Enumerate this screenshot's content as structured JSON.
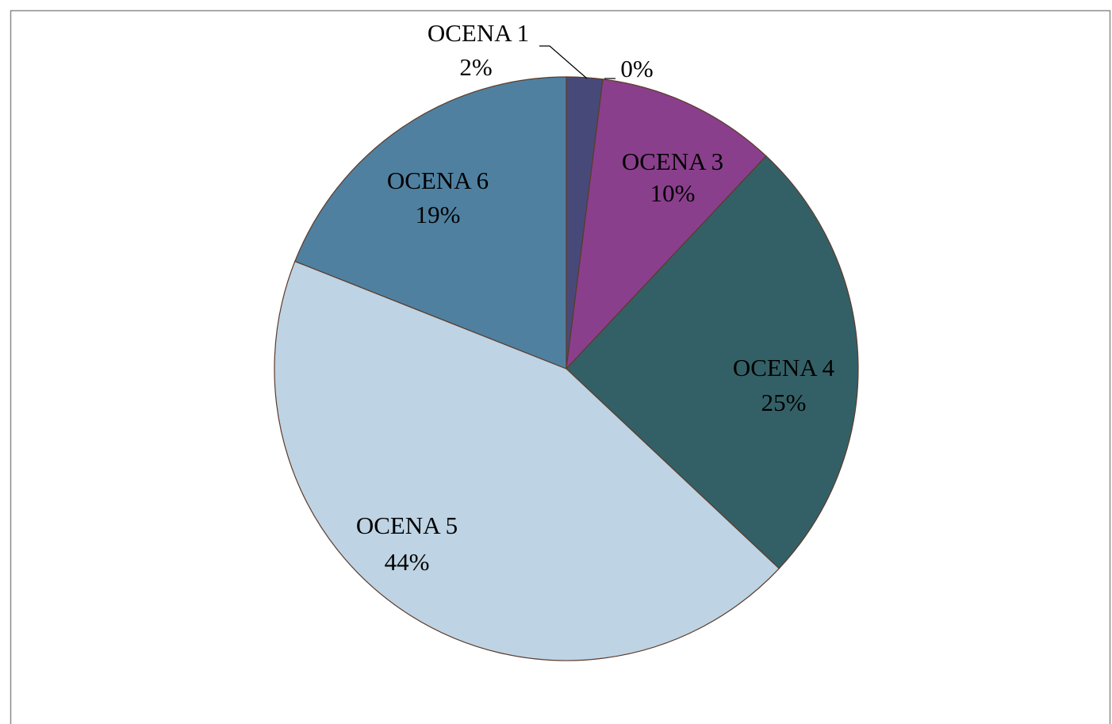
{
  "chart_data": {
    "type": "pie",
    "categories": [
      "OCENA 1",
      null,
      "OCENA 3",
      "OCENA 4",
      "OCENA 5",
      "OCENA 6"
    ],
    "values": [
      2,
      0,
      10,
      25,
      44,
      19
    ],
    "value_labels": [
      "2%",
      "0%",
      "10%",
      "25%",
      "44%",
      "19%"
    ],
    "colors": [
      "#474a79",
      "#6b4f8a",
      "#8a3f8c",
      "#336066",
      "#bed3e3",
      "#4f80a0"
    ]
  }
}
